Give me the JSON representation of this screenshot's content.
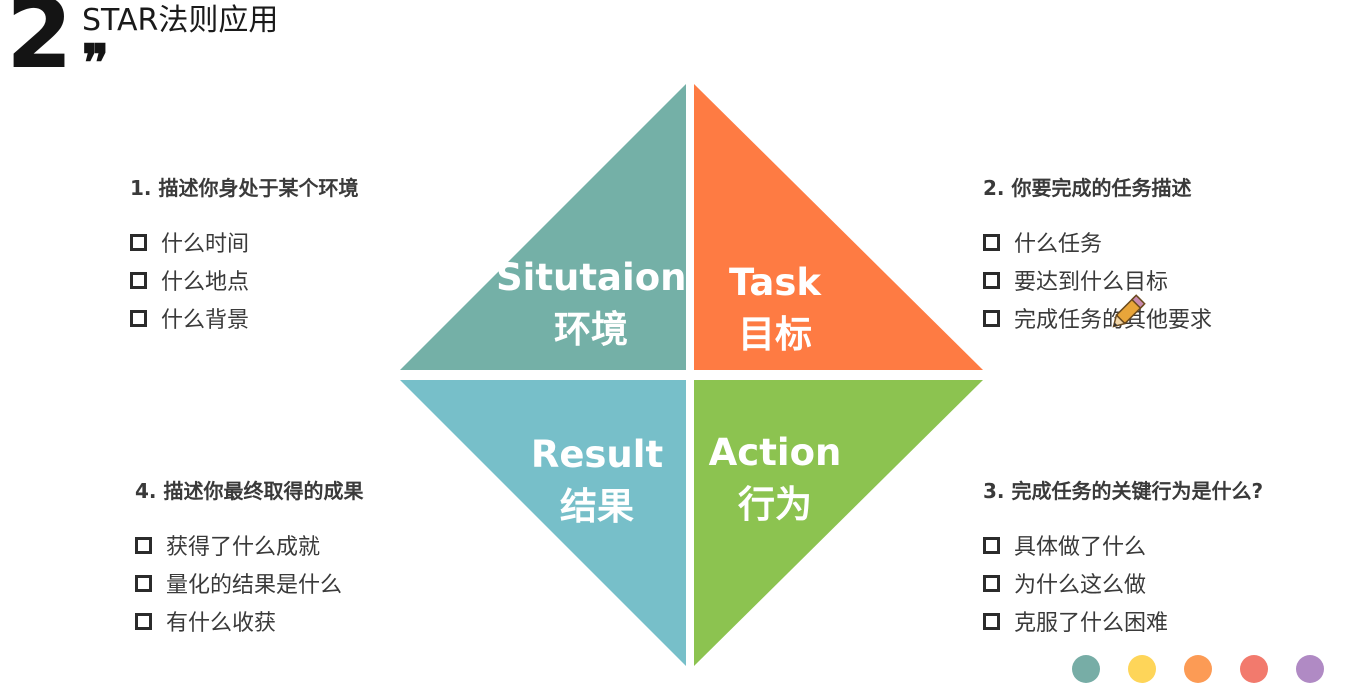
{
  "title": {
    "number": "2",
    "quote": "❞",
    "text": "STAR法则应用"
  },
  "colors": {
    "situation": "#74b0a7",
    "task": "#fe7b43",
    "result": "#77bfc9",
    "action": "#8cc350"
  },
  "quadrants": {
    "situation": {
      "en": "Situtaion",
      "zh": "环境"
    },
    "task": {
      "en": "Task",
      "zh": "目标"
    },
    "result": {
      "en": "Result",
      "zh": "结果"
    },
    "action": {
      "en": "Action",
      "zh": "行为"
    }
  },
  "panels": {
    "situation": {
      "heading": "1. 描述你身处于某个环境",
      "items": [
        "什么时间",
        "什么地点",
        "什么背景"
      ]
    },
    "task": {
      "heading": "2. 你要完成的任务描述",
      "items": [
        "什么任务",
        "要达到什么目标",
        "完成任务的其他要求"
      ]
    },
    "action": {
      "heading": "3. 完成任务的关键行为是什么?",
      "items": [
        "具体做了什么",
        "为什么这么做",
        "克服了什么困难"
      ]
    },
    "result": {
      "heading": "4. 描述你最终取得的成果",
      "items": [
        "获得了什么成就",
        "量化的结果是什么",
        "有什么收获"
      ]
    }
  },
  "cursor_icon": "pencil-icon",
  "footer_dots": [
    "#77ada6",
    "#fed559",
    "#fc9b55",
    "#f27a6d",
    "#b08ac4"
  ]
}
